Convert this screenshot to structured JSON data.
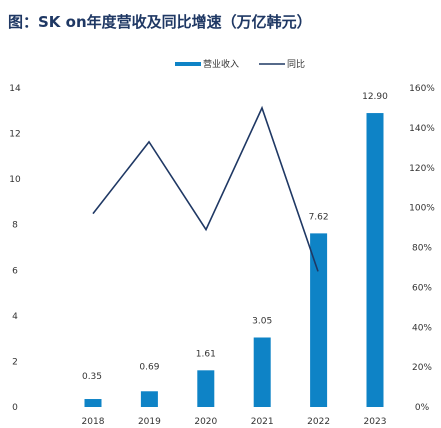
{
  "chart_data": {
    "type": "bar+line",
    "title": "图：SK on年度营收及同比增速（万亿韩元）",
    "categories": [
      "2018",
      "2019",
      "2020",
      "2021",
      "2022",
      "2023"
    ],
    "series": [
      {
        "name": "营业收入",
        "type": "bar",
        "axis": "left",
        "values": [
          0.35,
          0.69,
          1.61,
          3.05,
          7.62,
          12.9
        ],
        "data_labels": [
          "0.35",
          "0.69",
          "1.61",
          "3.05",
          "7.62",
          "12.90"
        ]
      },
      {
        "name": "同比",
        "type": "line",
        "axis": "right",
        "values": [
          null,
          97,
          133,
          89,
          150,
          68
        ]
      }
    ],
    "left_axis": {
      "ylim": [
        0,
        14
      ],
      "ticks": [
        "0",
        "2",
        "4",
        "6",
        "8",
        "10",
        "12",
        "14"
      ]
    },
    "right_axis": {
      "ylim": [
        0,
        160
      ],
      "ticks": [
        "0%",
        "20%",
        "40%",
        "60%",
        "80%",
        "100%",
        "120%",
        "140%",
        "160%"
      ]
    },
    "legend": {
      "placement": "top-center"
    },
    "grid": false,
    "colors": {
      "bar": "#0e83c6",
      "line": "#1f3864",
      "title": "#1f3864"
    }
  }
}
